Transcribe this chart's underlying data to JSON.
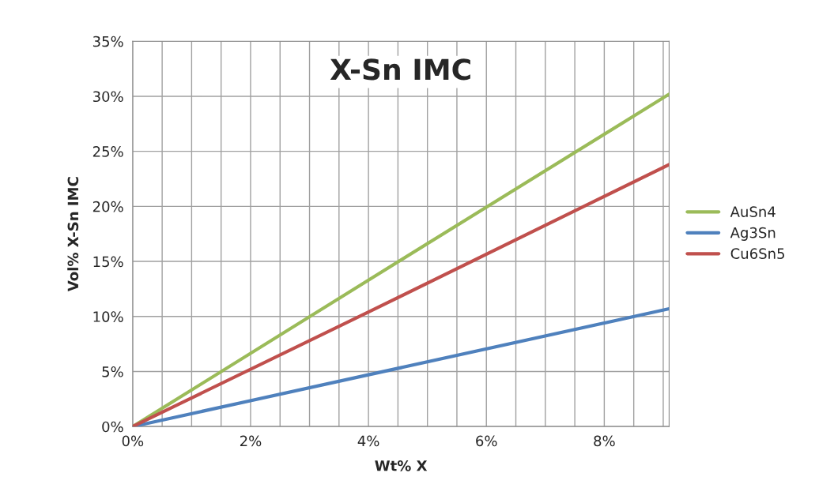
{
  "chart_data": {
    "type": "line",
    "title": "X-Sn IMC",
    "xlabel": "Wt% X",
    "ylabel": "Vol% X-Sn IMC",
    "x": [
      0,
      4,
      9.1
    ],
    "series": [
      {
        "name": "AuSn4",
        "color": "#9bbb59",
        "values": [
          0,
          13.3,
          30.2
        ]
      },
      {
        "name": "Ag3Sn",
        "color": "#4f81bd",
        "values": [
          0,
          4.7,
          10.7
        ]
      },
      {
        "name": "Cu6Sn5",
        "color": "#c0504d",
        "values": [
          0,
          10.4,
          23.8
        ]
      }
    ],
    "xlim": [
      0,
      9.1
    ],
    "ylim": [
      0,
      35
    ],
    "xticks": [
      {
        "value": 0,
        "label": "0%"
      },
      {
        "value": 0.5,
        "label": null
      },
      {
        "value": 1,
        "label": null
      },
      {
        "value": 1.5,
        "label": null
      },
      {
        "value": 2,
        "label": "2%"
      },
      {
        "value": 2.5,
        "label": null
      },
      {
        "value": 3,
        "label": null
      },
      {
        "value": 3.5,
        "label": null
      },
      {
        "value": 4,
        "label": "4%"
      },
      {
        "value": 4.5,
        "label": null
      },
      {
        "value": 5,
        "label": null
      },
      {
        "value": 5.5,
        "label": null
      },
      {
        "value": 6,
        "label": "6%"
      },
      {
        "value": 6.5,
        "label": null
      },
      {
        "value": 7,
        "label": null
      },
      {
        "value": 7.5,
        "label": null
      },
      {
        "value": 8,
        "label": "8%"
      },
      {
        "value": 8.5,
        "label": null
      },
      {
        "value": 9,
        "label": null
      }
    ],
    "yticks": [
      {
        "value": 0,
        "label": "0%"
      },
      {
        "value": 5,
        "label": "5%"
      },
      {
        "value": 10,
        "label": "10%"
      },
      {
        "value": 15,
        "label": "15%"
      },
      {
        "value": 20,
        "label": "20%"
      },
      {
        "value": 25,
        "label": "25%"
      },
      {
        "value": 30,
        "label": "30%"
      },
      {
        "value": 35,
        "label": "35%"
      }
    ],
    "grid": true,
    "legend": "right",
    "marker": "none",
    "line_style": "solid"
  }
}
